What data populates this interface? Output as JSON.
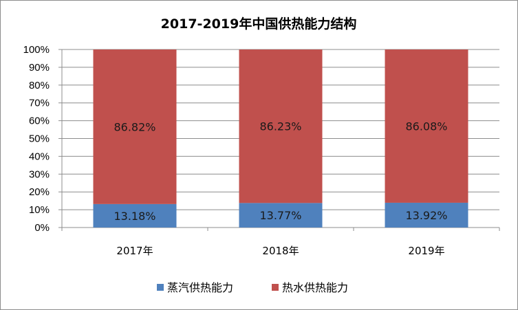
{
  "chart_data": {
    "type": "bar",
    "stacked": true,
    "title": "2017-2019年中国供热能力结构",
    "categories": [
      "2017年",
      "2018年",
      "2019年"
    ],
    "series": [
      {
        "name": "蒸汽供热能力",
        "values": [
          13.18,
          13.77,
          13.92
        ],
        "labels": [
          "13.18%",
          "13.77%",
          "13.92%"
        ],
        "color": "#4f81bd"
      },
      {
        "name": "热水供热能力",
        "values": [
          86.82,
          86.23,
          86.08
        ],
        "labels": [
          "86.82%",
          "86.23%",
          "86.08%"
        ],
        "color": "#c0504d"
      }
    ],
    "yticks": [
      "0%",
      "10%",
      "20%",
      "30%",
      "40%",
      "50%",
      "60%",
      "70%",
      "80%",
      "90%",
      "100%"
    ],
    "ylim": [
      0,
      100
    ],
    "grid": true,
    "legend": "bottom"
  }
}
